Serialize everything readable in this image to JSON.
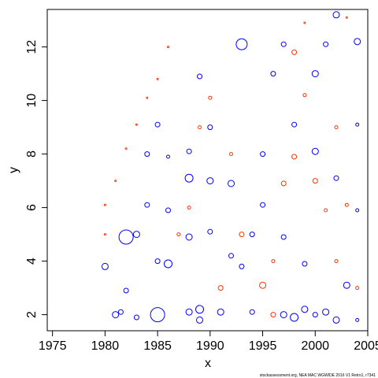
{
  "chart_data": {
    "type": "scatter",
    "xlabel": "x",
    "ylabel": "y",
    "xlim": [
      1974.5,
      2005
    ],
    "ylim": [
      1.4,
      13.4
    ],
    "x_ticks": [
      1975,
      1980,
      1985,
      1990,
      1995,
      2000,
      2005
    ],
    "y_ticks": [
      2,
      4,
      6,
      8,
      10,
      12
    ],
    "grid": false,
    "legend": "none",
    "marker": "open-circle",
    "bubble_size": "relative-magnitude",
    "colors": {
      "positive": "#ff3300",
      "negative": "#0000ff"
    },
    "credit": "stockassessment.org, NEA MAC WGWIDE 2016 V1 Retro1, r7341",
    "series": [
      {
        "color_key": "negative",
        "points": [
          [
            1980,
            3.8,
            4
          ],
          [
            1981,
            2.0,
            4
          ],
          [
            1981.5,
            2.1,
            3
          ],
          [
            1982,
            4.9,
            9
          ],
          [
            1982,
            2.9,
            3
          ],
          [
            1983,
            5.0,
            4
          ],
          [
            1983,
            1.9,
            3
          ],
          [
            1984,
            6.1,
            3
          ],
          [
            1984,
            8.0,
            3
          ],
          [
            1985,
            2.0,
            9
          ],
          [
            1985,
            4.0,
            3
          ],
          [
            1985,
            9.1,
            3
          ],
          [
            1986,
            3.9,
            5
          ],
          [
            1986,
            5.9,
            3
          ],
          [
            1986,
            7.9,
            2
          ],
          [
            1988,
            4.9,
            4
          ],
          [
            1988,
            7.1,
            5
          ],
          [
            1988,
            2.1,
            4
          ],
          [
            1988,
            8.1,
            3
          ],
          [
            1989,
            1.8,
            4
          ],
          [
            1989,
            2.2,
            5
          ],
          [
            1989,
            10.9,
            3
          ],
          [
            1990,
            7.0,
            4
          ],
          [
            1990,
            9.0,
            3
          ],
          [
            1990,
            5.1,
            3
          ],
          [
            1991,
            2.1,
            4
          ],
          [
            1992,
            4.2,
            3
          ],
          [
            1992,
            6.9,
            4
          ],
          [
            1993,
            12.1,
            7
          ],
          [
            1993,
            3.8,
            3
          ],
          [
            1994,
            2.1,
            3
          ],
          [
            1994,
            5.0,
            3
          ],
          [
            1995,
            6.1,
            3
          ],
          [
            1995,
            8.0,
            3
          ],
          [
            1996,
            11.0,
            3
          ],
          [
            1997,
            2.0,
            4
          ],
          [
            1997,
            4.9,
            3
          ],
          [
            1997,
            12.1,
            3
          ],
          [
            1998,
            1.9,
            5
          ],
          [
            1998,
            9.1,
            3
          ],
          [
            1999,
            2.2,
            4
          ],
          [
            1999,
            3.9,
            3
          ],
          [
            2000,
            8.1,
            4
          ],
          [
            2000,
            11.0,
            4
          ],
          [
            2000,
            2.0,
            3
          ],
          [
            2001,
            2.1,
            4
          ],
          [
            2001,
            12.1,
            3
          ],
          [
            2002,
            1.8,
            4
          ],
          [
            2002,
            13.2,
            4
          ],
          [
            2002,
            7.1,
            3
          ],
          [
            2003,
            3.1,
            4
          ],
          [
            2004,
            12.2,
            4
          ],
          [
            2004,
            1.8,
            2
          ],
          [
            2004,
            9.1,
            2
          ],
          [
            2004,
            5.9,
            2
          ]
        ]
      },
      {
        "color_key": "positive",
        "points": [
          [
            1980,
            5.0,
            1
          ],
          [
            1980,
            6.1,
            1
          ],
          [
            1981,
            7.0,
            1
          ],
          [
            1982,
            8.2,
            1
          ],
          [
            1983,
            9.1,
            1
          ],
          [
            1984,
            10.1,
            1
          ],
          [
            1985,
            10.8,
            1
          ],
          [
            1986,
            12.0,
            1
          ],
          [
            1987,
            5.0,
            2
          ],
          [
            1988,
            6.0,
            2
          ],
          [
            1989,
            9.0,
            2
          ],
          [
            1990,
            10.1,
            2
          ],
          [
            1991,
            3.0,
            3
          ],
          [
            1992,
            8.0,
            2
          ],
          [
            1993,
            5.0,
            3
          ],
          [
            1995,
            3.1,
            4
          ],
          [
            1996,
            2.0,
            3
          ],
          [
            1997,
            6.9,
            3
          ],
          [
            1998,
            11.8,
            3
          ],
          [
            1999,
            10.2,
            2
          ],
          [
            2000,
            7.0,
            3
          ],
          [
            2001,
            5.9,
            2
          ],
          [
            2002,
            9.0,
            2
          ],
          [
            2003,
            6.1,
            2
          ],
          [
            2004,
            3.0,
            2
          ],
          [
            1999,
            12.9,
            1
          ],
          [
            2003,
            13.1,
            1
          ],
          [
            1998,
            7.9,
            3
          ],
          [
            1996,
            4.0,
            2
          ],
          [
            2002,
            4.0,
            2
          ]
        ]
      }
    ]
  }
}
